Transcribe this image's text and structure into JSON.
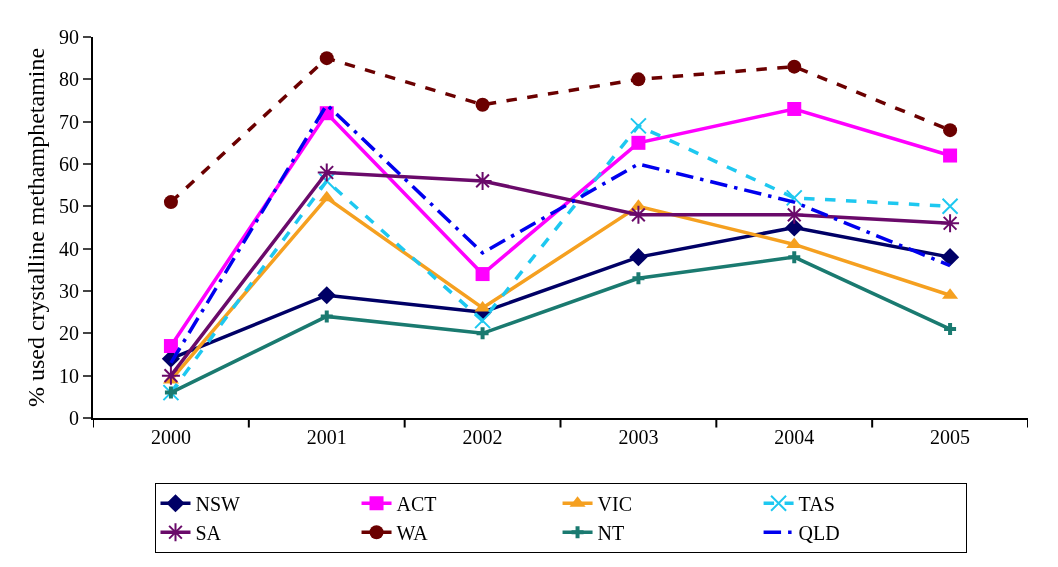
{
  "chart_data": {
    "type": "line",
    "ylabel": "% used crystalline methamphetamine",
    "categories": [
      "2000",
      "2001",
      "2002",
      "2003",
      "2004",
      "2005"
    ],
    "ylim": [
      0,
      90
    ],
    "yticks": [
      0,
      10,
      20,
      30,
      40,
      50,
      60,
      70,
      80,
      90
    ],
    "legend": "bottom",
    "series": [
      {
        "name": "NSW",
        "color": "#000066",
        "marker": "diamond",
        "line_style": "solid",
        "values": [
          14,
          29,
          25,
          38,
          45,
          38
        ]
      },
      {
        "name": "ACT",
        "color": "#ff00ff",
        "marker": "square",
        "line_style": "solid",
        "values": [
          17,
          72,
          34,
          65,
          73,
          62
        ]
      },
      {
        "name": "VIC",
        "color": "#f5a020",
        "marker": "triangle",
        "line_style": "solid",
        "values": [
          9,
          52,
          26,
          50,
          41,
          29
        ]
      },
      {
        "name": "TAS",
        "color": "#1ec8f0",
        "marker": "x",
        "line_style": "dashed",
        "values": [
          6,
          56,
          23,
          69,
          52,
          50
        ]
      },
      {
        "name": "SA",
        "color": "#6a0a6a",
        "marker": "cross",
        "line_style": "solid",
        "values": [
          10,
          58,
          56,
          48,
          48,
          46
        ]
      },
      {
        "name": "WA",
        "color": "#6b0000",
        "marker": "circle",
        "line_style": "dashed",
        "values": [
          51,
          85,
          74,
          80,
          83,
          68
        ]
      },
      {
        "name": "NT",
        "color": "#1a7a70",
        "marker": "plus",
        "line_style": "solid",
        "values": [
          6,
          24,
          20,
          33,
          38,
          21
        ]
      },
      {
        "name": "QLD",
        "color": "#0000ee",
        "marker": "none",
        "line_style": "dashdot",
        "values": [
          13,
          74,
          39,
          60,
          51,
          36
        ]
      }
    ]
  }
}
